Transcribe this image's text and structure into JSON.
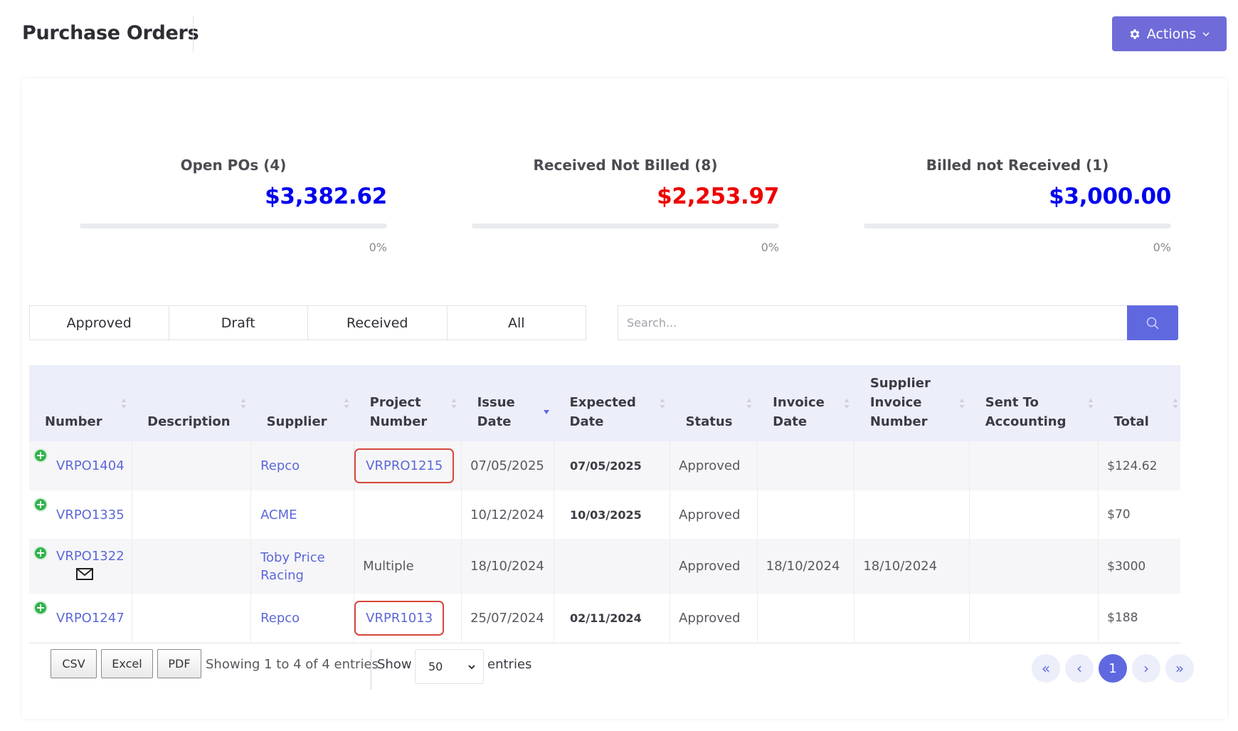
{
  "header": {
    "title": "Purchase Orders",
    "actions_label": "Actions"
  },
  "stats": [
    {
      "label": "Open POs (4)",
      "amount": "$3,382.62",
      "amount_color": "#0000ee",
      "progress": 0,
      "progress_label": "0%"
    },
    {
      "label": "Received Not Billed (8)",
      "amount": "$2,253.97",
      "amount_color": "#ee0000",
      "progress": 0,
      "progress_label": "0%"
    },
    {
      "label": "Billed not Received (1)",
      "amount": "$3,000.00",
      "amount_color": "#0000ee",
      "progress": 0,
      "progress_label": "0%"
    }
  ],
  "filters": {
    "tabs": [
      "Approved",
      "Draft",
      "Received",
      "All"
    ]
  },
  "search": {
    "placeholder": "Search..."
  },
  "table": {
    "columns": [
      [
        "Number"
      ],
      [
        "Description"
      ],
      [
        "Supplier"
      ],
      [
        "Project",
        "Number"
      ],
      [
        "Issue",
        "Date"
      ],
      [
        "Expected",
        "Date"
      ],
      [
        "Status"
      ],
      [
        "Invoice",
        "Date"
      ],
      [
        "Supplier",
        "Invoice",
        "Number"
      ],
      [
        "Sent To",
        "Accounting"
      ],
      [
        "Total"
      ]
    ],
    "rows": [
      {
        "number": "VRPO1404",
        "description": "",
        "supplier": [
          "Repco"
        ],
        "project": "VRPRO1215",
        "project_highlighted": true,
        "issue_date": "07/05/2025",
        "expected_date": "07/05/2025",
        "status": "Approved",
        "invoice_date": "",
        "supplier_invoice": "",
        "sent_to_accounting": "",
        "total": "$124.62",
        "has_mail": false
      },
      {
        "number": "VRPO1335",
        "description": "",
        "supplier": [
          "ACME"
        ],
        "project": "",
        "project_highlighted": false,
        "issue_date": "10/12/2024",
        "expected_date": "10/03/2025",
        "status": "Approved",
        "invoice_date": "",
        "supplier_invoice": "",
        "sent_to_accounting": "",
        "total": "$70",
        "has_mail": false
      },
      {
        "number": "VRPO1322",
        "description": "",
        "supplier": [
          "Toby Price",
          "Racing"
        ],
        "project": "Multiple",
        "project_highlighted": false,
        "issue_date": "18/10/2024",
        "expected_date": "",
        "status": "Approved",
        "invoice_date": "18/10/2024",
        "supplier_invoice": "18/10/2024",
        "sent_to_accounting": "",
        "total": "$3000",
        "has_mail": true
      },
      {
        "number": "VRPO1247",
        "description": "",
        "supplier": [
          "Repco"
        ],
        "project": "VRPR1013",
        "project_highlighted": true,
        "issue_date": "25/07/2024",
        "expected_date": "02/11/2024",
        "status": "Approved",
        "invoice_date": "",
        "supplier_invoice": "",
        "sent_to_accounting": "",
        "total": "$188",
        "has_mail": false
      }
    ]
  },
  "footer": {
    "export_buttons": [
      "CSV",
      "Excel",
      "PDF"
    ],
    "showing_text": "Showing 1 to 4 of 4 entries",
    "show_label": "Show",
    "page_size": "50",
    "entries_label": "entries",
    "current_page": "1"
  }
}
